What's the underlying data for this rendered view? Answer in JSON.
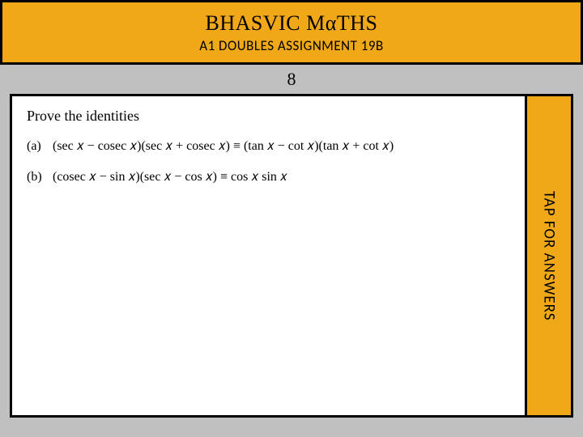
{
  "colors": {
    "page_bg": "#c0c0c0",
    "accent": "#f0a818",
    "border": "#000000",
    "content_bg": "#ffffff",
    "text": "#000000"
  },
  "header": {
    "title": "BHASVIC MαTHS",
    "subtitle": "A1 DOUBLES ASSIGNMENT 19B",
    "title_fontsize": 26,
    "subtitle_fontsize": 17
  },
  "question_number": "8",
  "content": {
    "heading": "Prove the identities",
    "problems": [
      {
        "label": "(a)",
        "expr": "(sec 𝑥 − cosec 𝑥)(sec 𝑥 + cosec 𝑥) ≡ (tan 𝑥 − cot 𝑥)(tan 𝑥 + cot 𝑥)"
      },
      {
        "label": "(b)",
        "expr": "(cosec 𝑥 − sin 𝑥)(sec 𝑥 − cos 𝑥) ≡ cos 𝑥 sin 𝑥"
      }
    ]
  },
  "answers_tab": {
    "label": "TAP FOR ANSWERS"
  }
}
